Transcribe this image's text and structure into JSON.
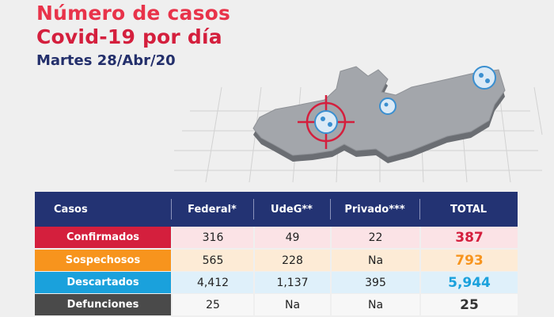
{
  "title": {
    "line1": "Número de casos",
    "line2": "Covid-19 por día",
    "date": "Martes 28/Abr/20"
  },
  "colors": {
    "header_bg": "#233373",
    "confirmados": "#d41f3d",
    "sospechosos": "#f7941d",
    "descartados": "#1aa1dc",
    "defunciones": "#4a4a4a",
    "title_red": "#d41f3d",
    "title_blue": "#232f6b"
  },
  "chart_data": {
    "type": "table",
    "columns": [
      "Casos",
      "Federal*",
      "UdeG**",
      "Privado***",
      "TOTAL"
    ],
    "rows": [
      {
        "label": "Confirmados",
        "values": [
          "316",
          "49",
          "22"
        ],
        "total": "387"
      },
      {
        "label": "Sospechosos",
        "values": [
          "565",
          "228",
          "Na"
        ],
        "total": "793"
      },
      {
        "label": "Descartados",
        "values": [
          "4,412",
          "1,137",
          "395"
        ],
        "total": "5,944"
      },
      {
        "label": "Defunciones",
        "values": [
          "25",
          "Na",
          "Na"
        ],
        "total": "25"
      }
    ]
  }
}
